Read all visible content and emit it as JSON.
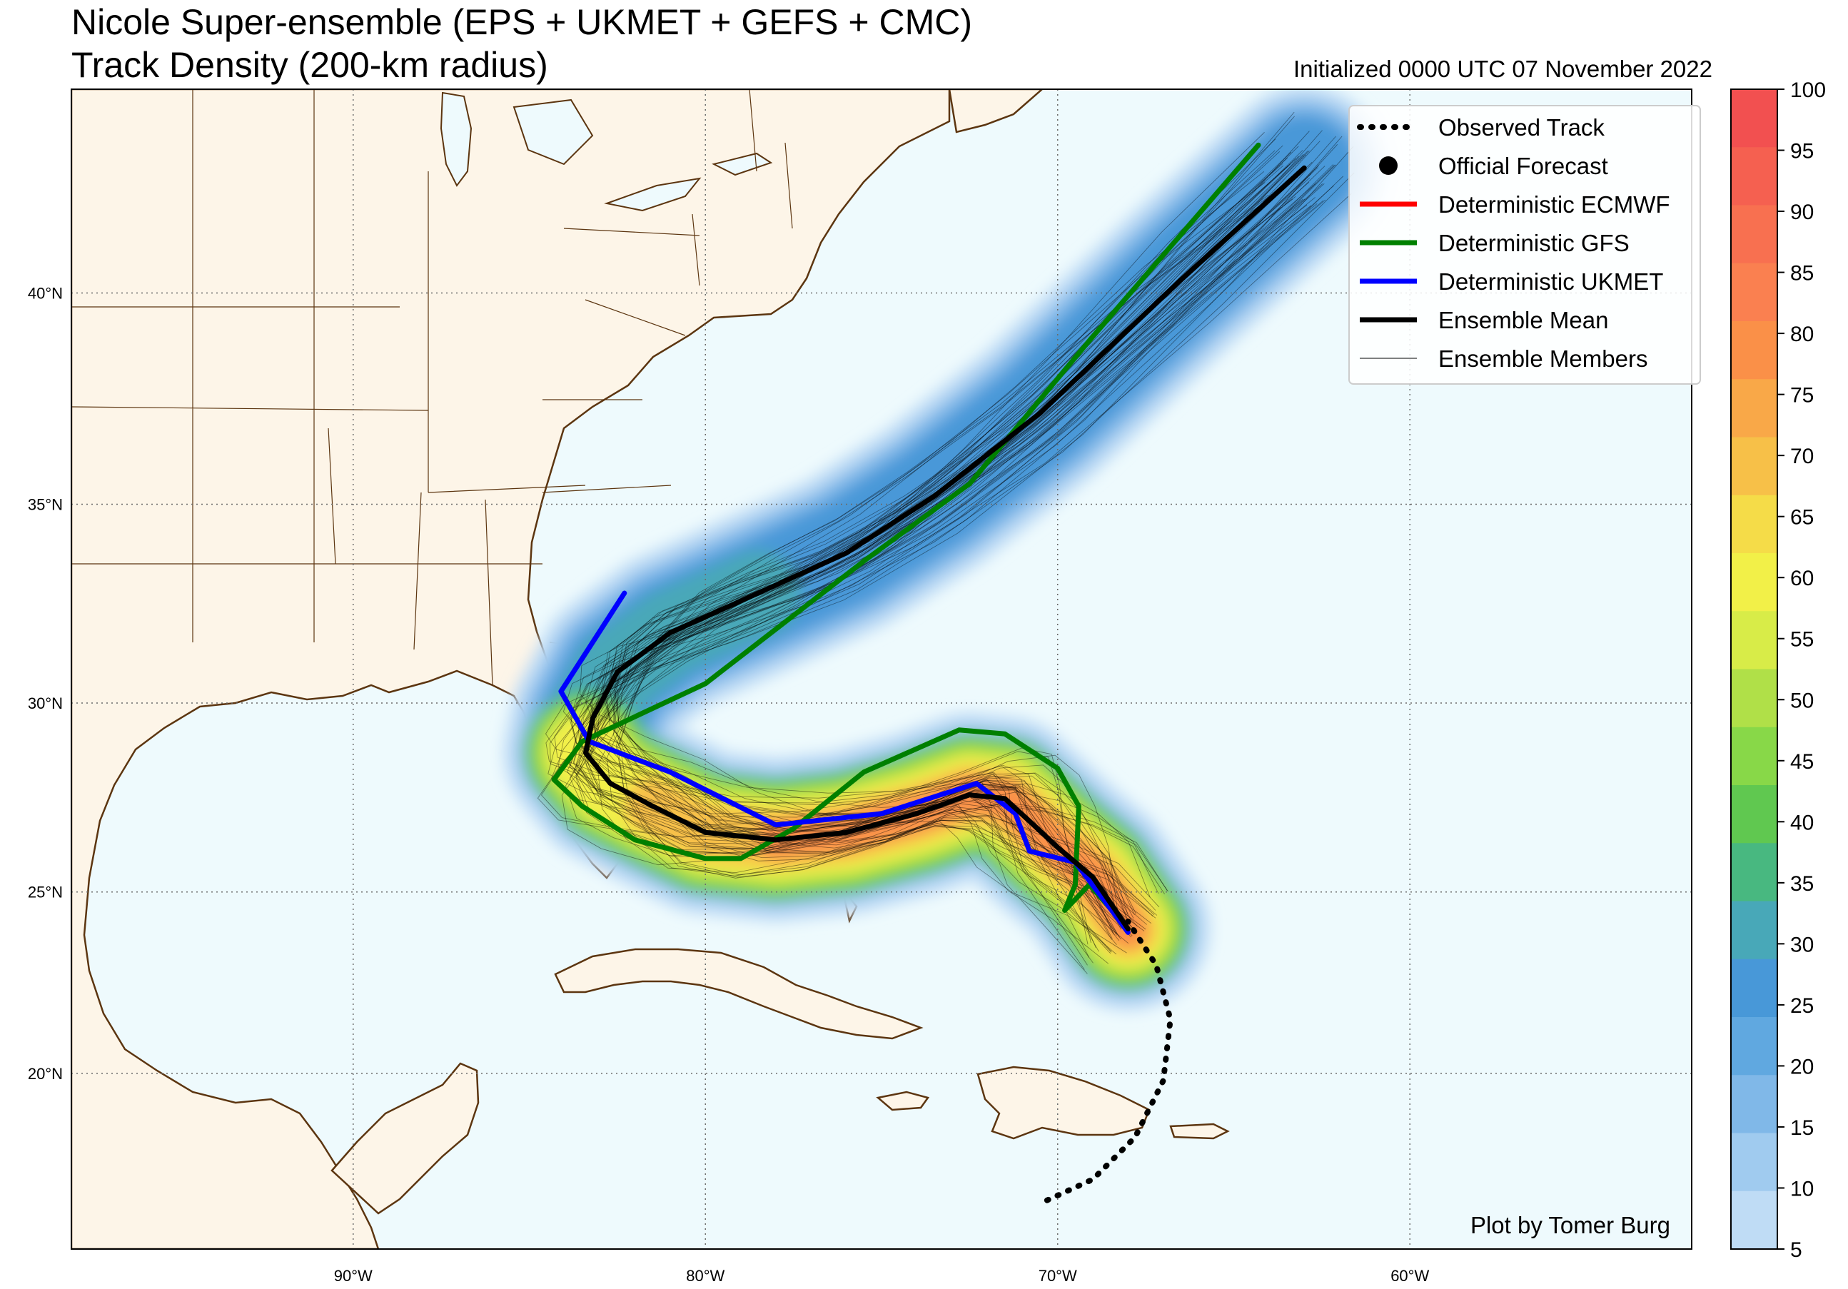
{
  "title_line1": "Nicole Super-ensemble (EPS + UKMET + GEFS + CMC)",
  "title_line2": "Track Density (200-km radius)",
  "initialized": "Initialized 0000 UTC 07 November 2022",
  "credit": "Plot by Tomer Burg",
  "map": {
    "lon_labels": [
      "90°W",
      "80°W",
      "70°W",
      "60°W"
    ],
    "lat_labels": [
      "40°N",
      "35°N",
      "30°N",
      "25°N",
      "20°N"
    ],
    "colors": {
      "land": "#fdf5e8",
      "ocean": "#eefafd",
      "coast": "#5c3510",
      "grid": "#6b6b6b"
    }
  },
  "legend": [
    {
      "label": "Observed Track",
      "style": "dotted",
      "color": "#000000"
    },
    {
      "label": "Official Forecast",
      "style": "dot",
      "color": "#000000"
    },
    {
      "label": "Deterministic ECMWF",
      "style": "line",
      "color": "#ff0000"
    },
    {
      "label": "Deterministic GFS",
      "style": "line",
      "color": "#008000"
    },
    {
      "label": "Deterministic UKMET",
      "style": "line",
      "color": "#0000ff"
    },
    {
      "label": "Ensemble Mean",
      "style": "line",
      "color": "#000000"
    },
    {
      "label": "Ensemble Members",
      "style": "thin",
      "color": "#000000"
    }
  ],
  "colorbar": {
    "ticks": [
      "100",
      "95",
      "90",
      "85",
      "80",
      "75",
      "70",
      "65",
      "60",
      "55",
      "50",
      "45",
      "40",
      "35",
      "30",
      "25",
      "20",
      "15",
      "10",
      "5"
    ],
    "colors_top_to_bottom": [
      "#f25050",
      "#f56050",
      "#f87050",
      "#fa8050",
      "#fa9048",
      "#f9a848",
      "#f7c048",
      "#f5dc48",
      "#f2f048",
      "#d8ec48",
      "#b0e048",
      "#88d848",
      "#60c850",
      "#48b880",
      "#48a8b8",
      "#4898d8",
      "#60a8e0",
      "#80b8e8",
      "#a0cbef",
      "#bfdcf5"
    ]
  },
  "chart_data": {
    "type": "map",
    "lon_range": [
      -98,
      -52
    ],
    "lat_range": [
      15,
      44.5
    ],
    "tracks": {
      "Observed Track": [
        [
          -70.3,
          16.4
        ],
        [
          -69.0,
          17.0
        ],
        [
          -67.8,
          18.2
        ],
        [
          -67.0,
          19.8
        ],
        [
          -66.8,
          21.5
        ],
        [
          -67.2,
          23.0
        ],
        [
          -68.0,
          24.2
        ]
      ],
      "Deterministic GFS": [
        [
          -64.3,
          43.3
        ],
        [
          -69,
          39
        ],
        [
          -72.5,
          35.5
        ],
        [
          -75.5,
          33.6
        ],
        [
          -80,
          30.5
        ],
        [
          -83.5,
          29.0
        ],
        [
          -84.3,
          28.0
        ],
        [
          -83.5,
          27.3
        ],
        [
          -82.0,
          26.4
        ],
        [
          -80.0,
          25.9
        ],
        [
          -79.0,
          25.9
        ],
        [
          -77.5,
          26.7
        ],
        [
          -75.5,
          28.2
        ],
        [
          -72.8,
          29.3
        ],
        [
          -71.5,
          29.2
        ],
        [
          -70.0,
          28.3
        ],
        [
          -69.4,
          27.3
        ],
        [
          -69.5,
          25.2
        ],
        [
          -69.8,
          24.5
        ],
        [
          -69.1,
          25.2
        ],
        [
          -68.0,
          24.0
        ]
      ],
      "Deterministic UKMET": [
        [
          -82.3,
          32.8
        ],
        [
          -84.1,
          30.3
        ],
        [
          -83.3,
          29.0
        ],
        [
          -81.0,
          28.2
        ],
        [
          -78.0,
          26.8
        ],
        [
          -75.0,
          27.1
        ],
        [
          -72.3,
          27.9
        ],
        [
          -71.2,
          27.1
        ],
        [
          -70.8,
          26.1
        ],
        [
          -69.5,
          25.8
        ],
        [
          -68.7,
          24.8
        ],
        [
          -68.0,
          23.9
        ]
      ],
      "Ensemble Mean": [
        [
          -63.0,
          42.8
        ],
        [
          -66.5,
          40.3
        ],
        [
          -70.5,
          37.2
        ],
        [
          -73.5,
          35.2
        ],
        [
          -76.0,
          33.8
        ],
        [
          -78.5,
          32.8
        ],
        [
          -81.0,
          31.8
        ],
        [
          -82.5,
          30.8
        ],
        [
          -83.2,
          29.6
        ],
        [
          -83.4,
          28.7
        ],
        [
          -82.7,
          27.9
        ],
        [
          -81.5,
          27.3
        ],
        [
          -80.0,
          26.6
        ],
        [
          -78.0,
          26.4
        ],
        [
          -76.0,
          26.6
        ],
        [
          -74.0,
          27.1
        ],
        [
          -72.5,
          27.6
        ],
        [
          -71.5,
          27.5
        ],
        [
          -70.8,
          26.9
        ],
        [
          -70.0,
          26.2
        ],
        [
          -69.0,
          25.4
        ],
        [
          -68.0,
          24.0
        ]
      ]
    }
  }
}
